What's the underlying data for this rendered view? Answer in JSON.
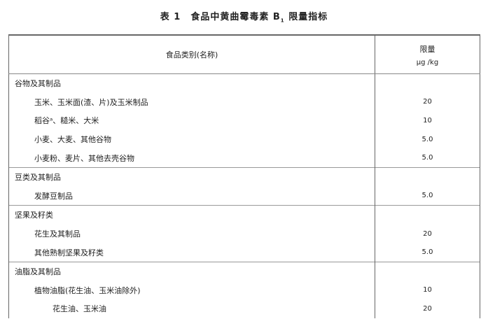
{
  "title": {
    "prefix": "表 1　食品中黄曲霉毒素 B",
    "sub": "1",
    "suffix": " 限量指标"
  },
  "header": {
    "category": "食品类别(名称)",
    "limit": "限量",
    "unit": "μg /kg"
  },
  "groups": [
    {
      "name": "谷物及其制品",
      "items": [
        {
          "name": "玉米、玉米面(渣、片)及玉米制品",
          "value": "20"
        },
        {
          "name": "稻谷ᵃ、糙米、大米",
          "value": "10"
        },
        {
          "name": "小麦、大麦、其他谷物",
          "value": "5.0"
        },
        {
          "name": "小麦粉、麦片、其他去壳谷物",
          "value": "5.0"
        }
      ]
    },
    {
      "name": "豆类及其制品",
      "items": [
        {
          "name": "发酵豆制品",
          "value": "5.0"
        }
      ]
    },
    {
      "name": "坚果及籽类",
      "items": [
        {
          "name": "花生及其制品",
          "value": "20"
        },
        {
          "name": "其他熟制坚果及籽类",
          "value": "5.0"
        }
      ]
    },
    {
      "name": "油脂及其制品",
      "items": [
        {
          "name": "植物油脂(花生油、玉米油除外)",
          "value": "10"
        },
        {
          "name": "花生油、玉米油",
          "value": "20",
          "sub": true
        }
      ]
    }
  ]
}
